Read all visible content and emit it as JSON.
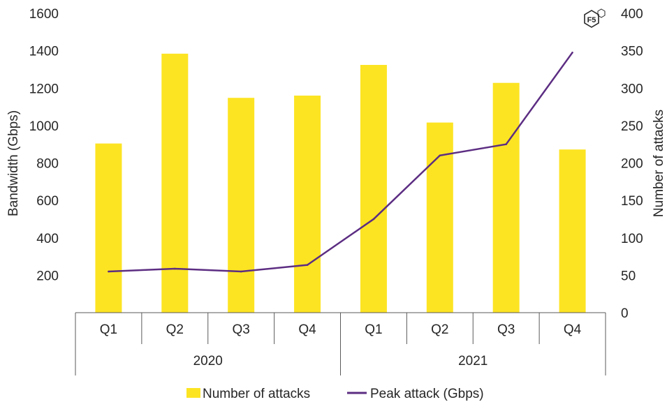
{
  "chart_data": {
    "type": "bar",
    "groups": [
      {
        "label": "2020",
        "categories": [
          "Q1",
          "Q2",
          "Q3",
          "Q4"
        ]
      },
      {
        "label": "2021",
        "categories": [
          "Q1",
          "Q2",
          "Q3",
          "Q4"
        ]
      }
    ],
    "series": [
      {
        "name": "Number of attacks",
        "type": "bar",
        "axis": "right",
        "color": "#FCE423",
        "values": [
          226,
          346,
          287,
          290,
          331,
          254,
          307,
          218
        ]
      },
      {
        "name": "Peak attack (Gbps)",
        "type": "line",
        "axis": "left",
        "color": "#5C2D82",
        "values": [
          220,
          235,
          220,
          255,
          500,
          840,
          900,
          1390
        ]
      }
    ],
    "ylabel_left": "Bandwidth (Gbps)",
    "ylabel_right": "Number of attacks",
    "ylim_left": [
      0,
      1600
    ],
    "yticks_left": [
      "200",
      "400",
      "600",
      "800",
      "1000",
      "1200",
      "1400",
      "1600"
    ],
    "ylim_right": [
      0,
      400
    ],
    "yticks_right": [
      "0",
      "50",
      "100",
      "150",
      "200",
      "250",
      "300",
      "350",
      "400"
    ],
    "legend_position": "bottom",
    "grid": false
  },
  "logo": {
    "text": "F5",
    "name": "f5-logo"
  }
}
